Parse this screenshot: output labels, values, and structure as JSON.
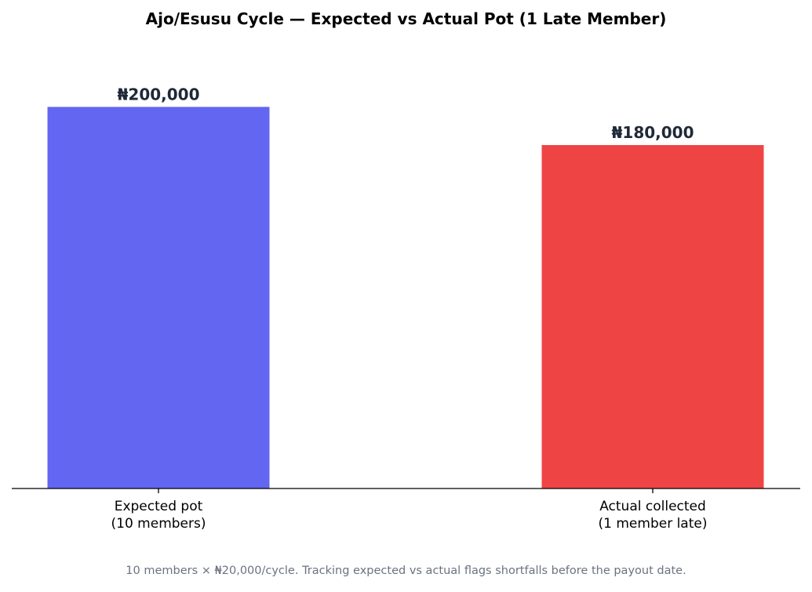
{
  "chart_data": {
    "type": "bar",
    "title": "Ajo/Esusu Cycle — Expected vs Actual Pot (1 Late Member)",
    "categories": [
      "Expected pot\n(10 members)",
      "Actual collected\n(1 member late)"
    ],
    "series": [
      {
        "colors": [
          "#6366f1",
          "#ef4444"
        ],
        "values": [
          200000,
          180000
        ],
        "value_labels": [
          "₦200,000",
          "₦180,000"
        ]
      }
    ],
    "ylim": [
      0,
      210000
    ],
    "note": "10 members × ₦20,000/cycle. Tracking expected vs actual flags shortfalls before the payout date."
  }
}
